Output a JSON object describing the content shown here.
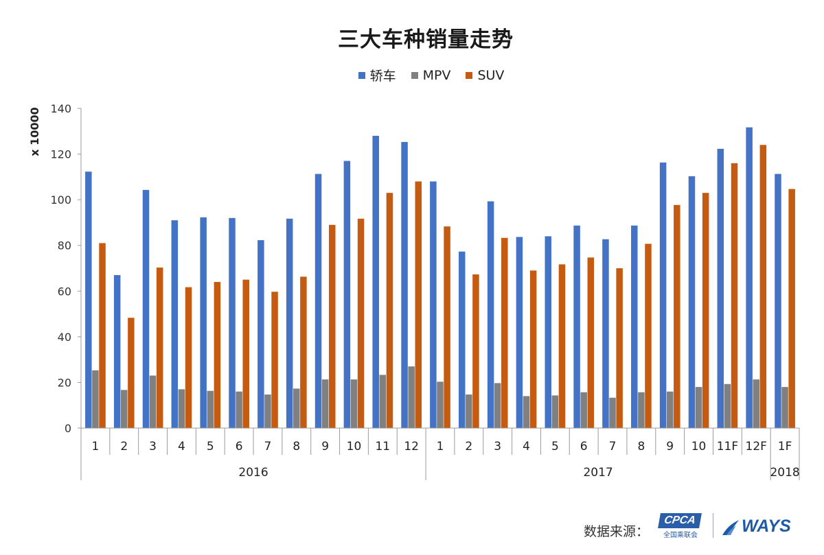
{
  "chart_data": {
    "type": "bar",
    "title": "三大车种销量走势",
    "ylabel": "x 10000",
    "ylim": [
      0,
      140
    ],
    "yticks": [
      0,
      20,
      40,
      60,
      80,
      100,
      120,
      140
    ],
    "legend_position": "top",
    "grid": false,
    "categories": [
      "1",
      "2",
      "3",
      "4",
      "5",
      "6",
      "7",
      "8",
      "9",
      "10",
      "11",
      "12",
      "1",
      "2",
      "3",
      "4",
      "5",
      "6",
      "7",
      "8",
      "9",
      "10",
      "11F",
      "12F",
      "1F"
    ],
    "groups": [
      {
        "label": "2016",
        "start": 0,
        "end": 11
      },
      {
        "label": "2017",
        "start": 12,
        "end": 23
      },
      {
        "label": "2018",
        "start": 24,
        "end": 24
      }
    ],
    "series": [
      {
        "name": "轿车",
        "color": "#4472c4",
        "values": [
          112.3,
          67.0,
          104.3,
          91.0,
          92.3,
          92.0,
          82.3,
          91.7,
          111.3,
          117.0,
          128.0,
          125.3,
          108.0,
          77.3,
          99.3,
          83.7,
          84.0,
          88.7,
          82.7,
          88.7,
          116.3,
          110.3,
          122.3,
          131.7,
          111.3
        ]
      },
      {
        "name": "MPV",
        "color": "#808080",
        "values": [
          25.3,
          16.7,
          23.0,
          17.0,
          16.3,
          16.0,
          14.7,
          17.3,
          21.3,
          21.3,
          23.3,
          27.0,
          20.3,
          14.7,
          19.7,
          14.0,
          14.3,
          15.7,
          13.3,
          15.7,
          16.0,
          18.0,
          19.3,
          21.3,
          18.0
        ]
      },
      {
        "name": "SUV",
        "color": "#c55a11",
        "values": [
          81.0,
          48.3,
          70.3,
          61.7,
          64.0,
          65.0,
          59.7,
          66.3,
          89.0,
          91.7,
          103.0,
          108.0,
          88.3,
          67.3,
          83.3,
          69.0,
          71.7,
          74.7,
          70.0,
          80.7,
          97.7,
          103.0,
          116.0,
          124.0,
          104.7
        ]
      }
    ]
  },
  "footer": {
    "source_label": "数据来源：",
    "cpca_logo_text": "CPCA",
    "cpca_logo_subtext": "全国乘联会",
    "ways_logo_text": "WAYS"
  }
}
